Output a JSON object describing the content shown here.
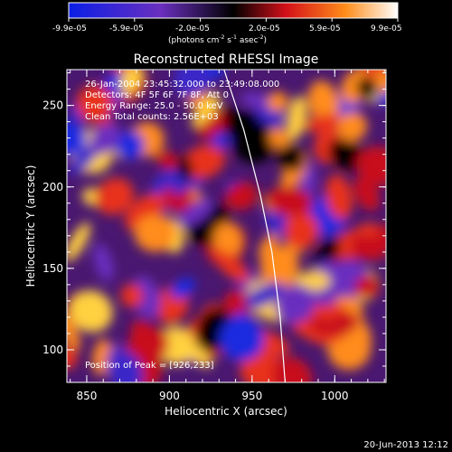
{
  "colorbar": {
    "ticks": [
      "-9.9e-05",
      "-5.9e-05",
      "-2.0e-05",
      "2.0e-05",
      "5.9e-05",
      "9.9e-05"
    ],
    "units_main": "(photons cm",
    "units_exp1": "-2",
    "units_mid": " s",
    "units_exp2": "-1",
    "units_mid2": " asec",
    "units_exp3": "-2",
    "units_end": ")",
    "colors": [
      "#0a1ee6",
      "#6a2fbf",
      "#000000",
      "#d4101a",
      "#ff8c1a",
      "#ffffff"
    ]
  },
  "chart_data": {
    "type": "heatmap",
    "title": "Reconstructed RHESSI Image",
    "xlabel": "Heliocentric X (arcsec)",
    "ylabel": "Heliocentric Y (arcsec)",
    "xlim": [
      838,
      1031
    ],
    "ylim": [
      80,
      272
    ],
    "xticks": [
      850,
      900,
      950,
      1000
    ],
    "yticks": [
      100,
      150,
      200,
      250
    ],
    "annotations": [
      "26-Jan-2004 23:45:32.000 to 23:49:08.000",
      "Detectors: 4F 5F 6F 7F 8F, Att 0",
      "Energy Range: 25.0 - 50.0 keV",
      "Clean    Total counts: 2.56E+03"
    ],
    "peak_label": "Position of Peak = [926,233]",
    "peak": [
      926,
      233
    ],
    "limb_curve": [
      [
        933,
        272
      ],
      [
        945,
        235
      ],
      [
        955,
        195
      ],
      [
        962,
        160
      ],
      [
        967,
        120
      ],
      [
        970,
        80
      ]
    ]
  },
  "footer": {
    "timestamp": "20-Jun-2013 12:12"
  }
}
